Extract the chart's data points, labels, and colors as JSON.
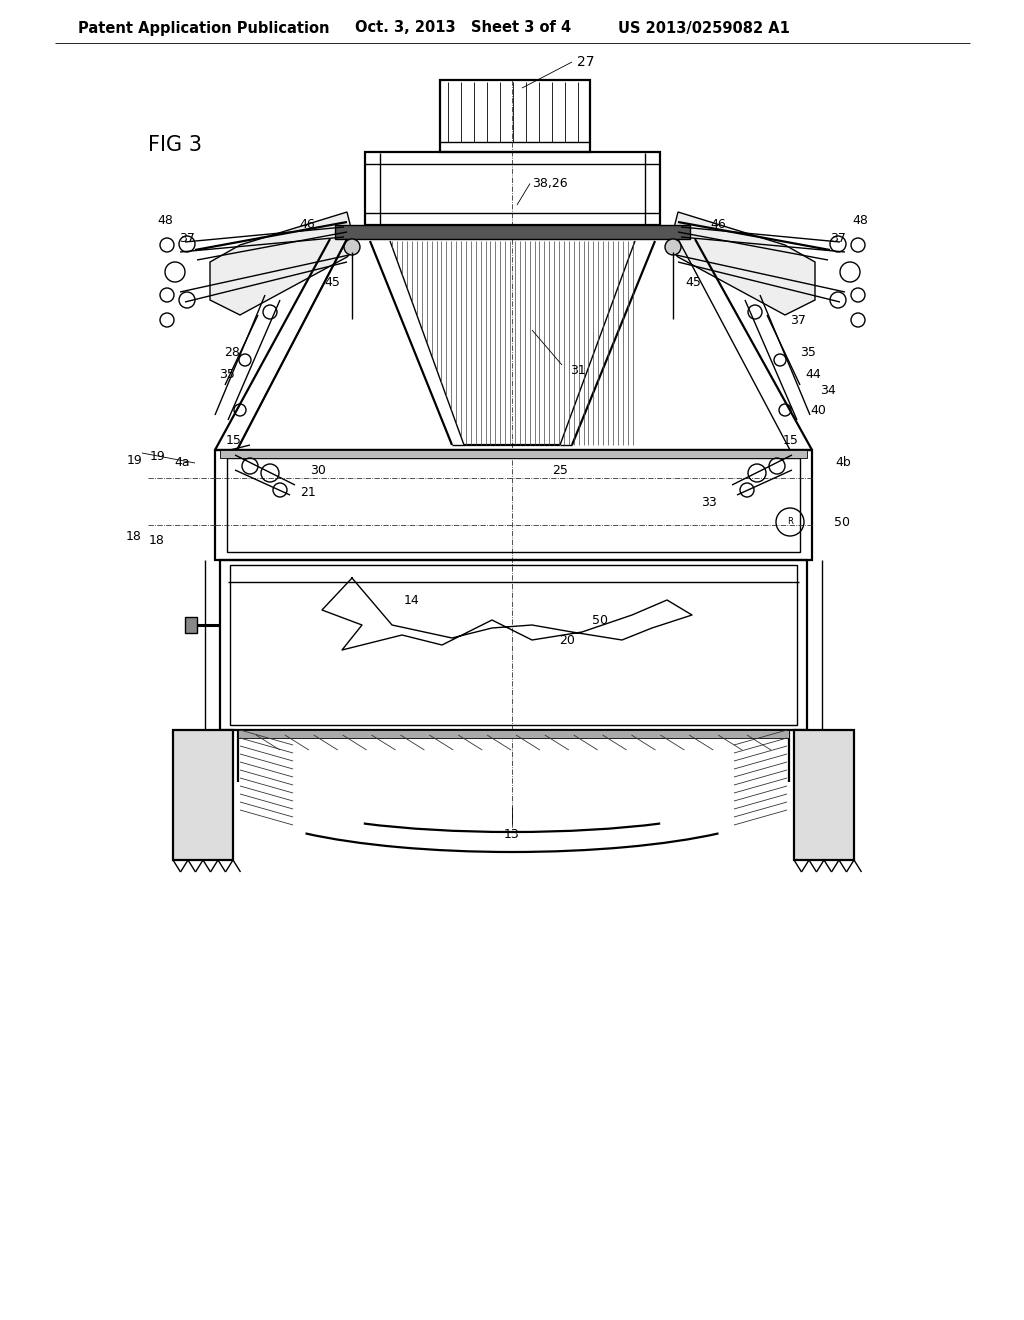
{
  "header_left": "Patent Application Publication",
  "header_mid": "Oct. 3, 2013   Sheet 3 of 4",
  "header_right": "US 2013/0259082 A1",
  "fig_label": "FIG 3",
  "bg_color": "#ffffff",
  "line_color": "#000000",
  "header_fontsize": 10.5,
  "fig_label_fontsize": 15,
  "annotation_fontsize": 9.5
}
